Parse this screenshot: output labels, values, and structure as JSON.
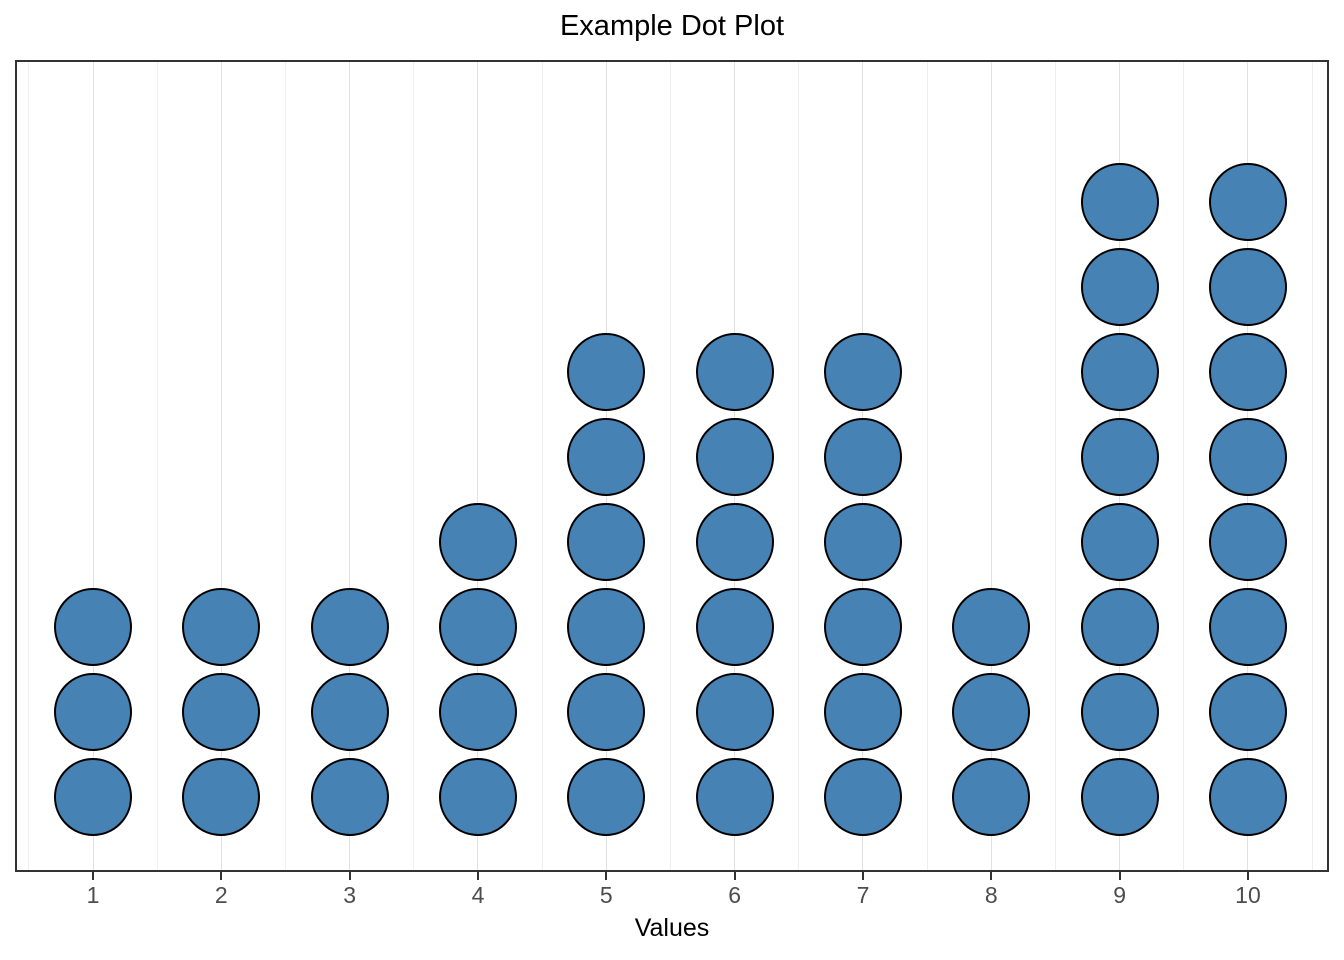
{
  "chart_data": {
    "type": "dotplot",
    "title": "Example Dot Plot",
    "xlabel": "Values",
    "ylabel": "",
    "x": [
      1,
      2,
      3,
      4,
      5,
      6,
      7,
      8,
      9,
      10
    ],
    "values": [
      3,
      3,
      3,
      4,
      6,
      6,
      6,
      3,
      8,
      8
    ],
    "x_tick_labels": [
      "1",
      "2",
      "3",
      "4",
      "5",
      "6",
      "7",
      "8",
      "9",
      "10"
    ],
    "xlim": [
      0.39,
      10.64
    ],
    "grid": {
      "vertical_major_at": [
        1,
        2,
        3,
        4,
        5,
        6,
        7,
        8,
        9,
        10
      ],
      "vertical_minor_at": [
        0.5,
        1.5,
        2.5,
        3.5,
        4.5,
        5.5,
        6.5,
        7.5,
        8.5,
        9.5,
        10.5
      ],
      "horizontal": false
    },
    "legend_position": "none",
    "style": {
      "dot_fill": "#4682B4",
      "dot_stroke": "#000000",
      "gridline_major_color": "#e2e2e2",
      "gridline_minor_color": "#efefef",
      "panel_border_color": "#333333",
      "tick_label_color": "#4d4d4d",
      "title_color": "#000000",
      "axis_title_color": "#000000",
      "background": "#ffffff"
    }
  }
}
